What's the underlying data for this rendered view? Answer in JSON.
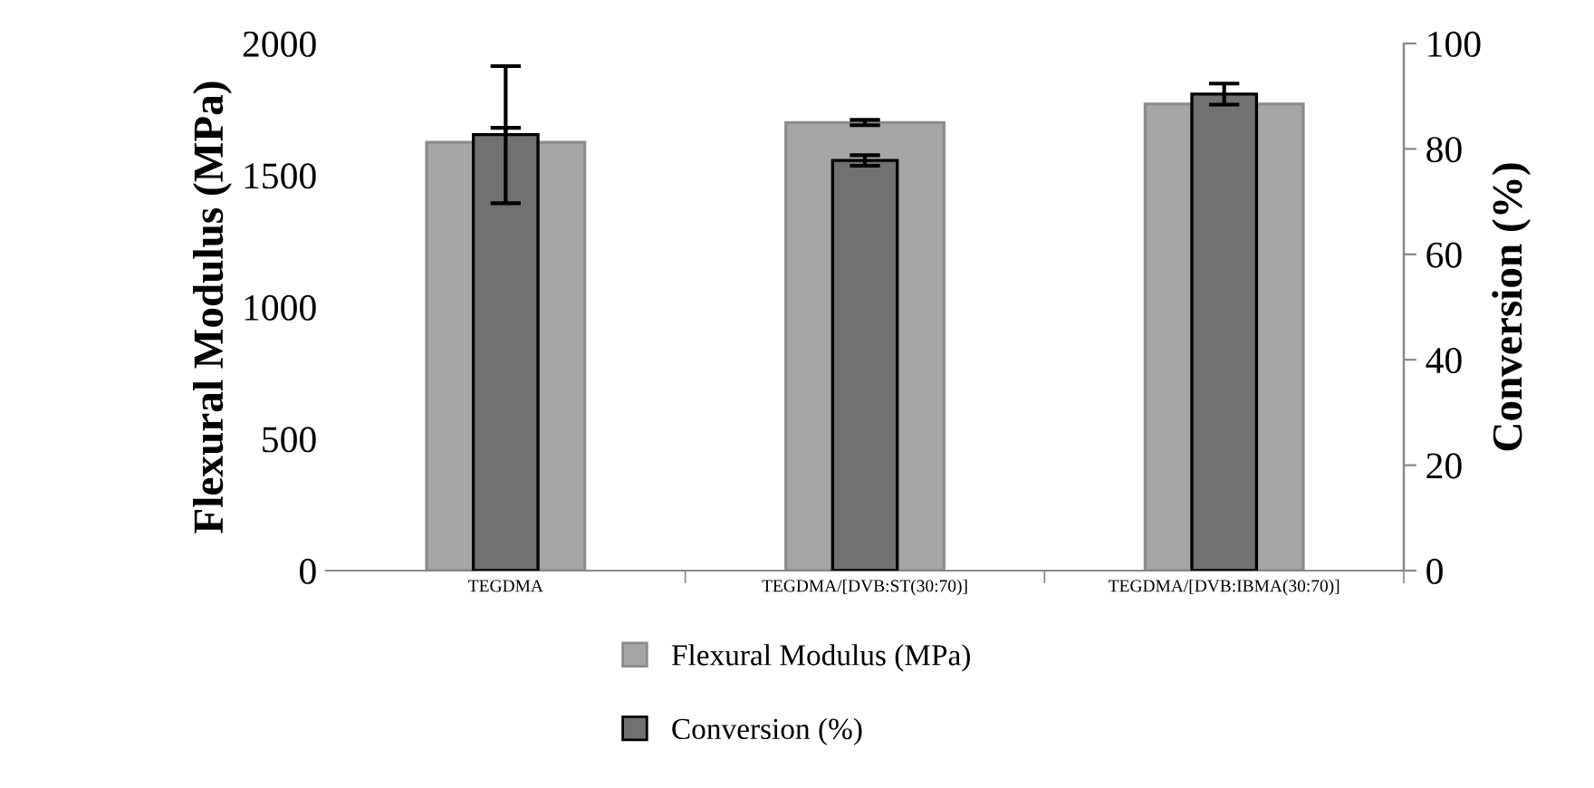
{
  "chart_data": {
    "type": "bar",
    "ylabel": "Flexural Modulus (MPa)",
    "y2label": "Conversion (%)",
    "categories": [
      "TEGDMA",
      "TEGDMA/[DVB:ST(30:70)]",
      "TEGDMA/[DVB:IBMA(30:70)]"
    ],
    "series": [
      {
        "name": "Flexural Modulus (MPa)",
        "color": "#a6a6a6",
        "values": [
          1625,
          1700,
          1770
        ],
        "errors": [
          55,
          10,
          10
        ]
      },
      {
        "name": "Conversion (%)",
        "color": "#717171",
        "values": [
          82.7,
          77.8,
          90.4
        ],
        "errors": [
          13,
          1,
          2
        ],
        "axis": "y2"
      }
    ],
    "ylim": [
      0,
      2000
    ],
    "yticks": [
      0,
      500,
      1000,
      1500,
      2000
    ],
    "y2lim": [
      0,
      100
    ],
    "y2ticks": [
      0,
      20,
      40,
      60,
      80,
      100
    ],
    "grid": false,
    "legend": "bottom"
  }
}
